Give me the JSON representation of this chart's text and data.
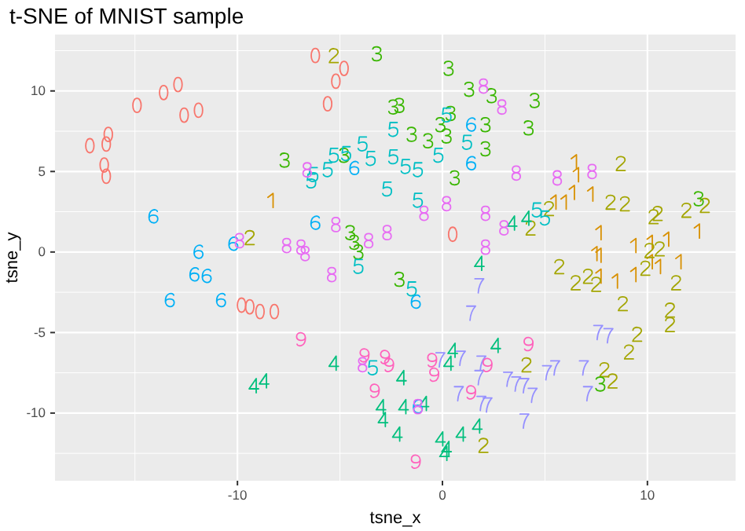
{
  "chart_data": {
    "type": "scatter",
    "title": "t-SNE of MNIST sample",
    "xlabel": "tsne_x",
    "ylabel": "tsne_y",
    "xlim": [
      -18.9,
      14.3
    ],
    "ylim": [
      -14.2,
      13.5
    ],
    "xticks": [
      -10,
      0,
      10
    ],
    "yticks": [
      -10,
      -5,
      0,
      5,
      10
    ],
    "grid": true,
    "series": [
      {
        "color": "#f8766d",
        "x": [
          -17.2,
          -16.4,
          -16.3,
          -16.5,
          -16.4,
          -14.9,
          -13.6,
          -12.9,
          -12.6,
          -11.9,
          -6.2,
          -4.8,
          -5.2,
          -5.6,
          0.5,
          -9.8,
          -9.4,
          -8.9,
          -8.2
        ],
        "values": [
          6.6,
          6.7,
          7.3,
          5.4,
          4.7,
          9.1,
          9.9,
          10.4,
          8.5,
          8.8,
          12.2,
          11.4,
          10.6,
          9.2,
          1.1,
          -3.3,
          -3.4,
          -3.7,
          -3.7
        ]
      },
      {
        "color": "#d89000",
        "x": [
          -8.3,
          6.5,
          6.6,
          6.4,
          7.3,
          5.5,
          6.0,
          7.7,
          7.5,
          7.7,
          9.4,
          10.2,
          11.0,
          12.5,
          11.6,
          10.6,
          10.2,
          8.5,
          9.4,
          7.7
        ],
        "values": [
          3.2,
          5.6,
          4.8,
          3.7,
          3.6,
          3.1,
          3.1,
          1.2,
          -0.1,
          -0.2,
          0.4,
          0.6,
          0.8,
          1.3,
          -0.6,
          -0.9,
          -0.6,
          -1.8,
          -1.4,
          -1.5
        ]
      },
      {
        "color": "#a3a500",
        "x": [
          -9.4,
          -5.3,
          8.7,
          5.2,
          4.3,
          8.2,
          8.9,
          10.3,
          10.5,
          11.9,
          12.8,
          10.1,
          10.6,
          9.9,
          5.7,
          6.5,
          7.1,
          7.5,
          11.4,
          8.8,
          11.1,
          11.1,
          9.5,
          9.1,
          4.1,
          7.9,
          8.3,
          2.0
        ],
        "values": [
          0.9,
          12.2,
          5.5,
          2.7,
          1.5,
          3.1,
          3.0,
          2.2,
          2.4,
          2.6,
          2.9,
          0.1,
          0.2,
          -1.0,
          -0.9,
          -1.9,
          -1.5,
          -2.0,
          -1.9,
          -3.2,
          -3.6,
          -4.5,
          -5.1,
          -6.2,
          -7.0,
          -7.3,
          -8.0,
          -12.0
        ]
      },
      {
        "color": "#39b600",
        "x": [
          -3.2,
          0.3,
          1.3,
          2.4,
          -2.4,
          -2.1,
          -1.5,
          -0.7,
          -0.1,
          0.4,
          0.2,
          2.1,
          2.1,
          -7.7,
          -4.8,
          0.6,
          -4.5,
          -4.3,
          -4.1,
          -2.1,
          4.5,
          4.2,
          12.5,
          7.7
        ],
        "values": [
          12.3,
          11.4,
          10.1,
          9.7,
          9.0,
          9.1,
          7.3,
          6.9,
          7.9,
          8.6,
          7.2,
          7.9,
          6.4,
          5.7,
          6.0,
          4.6,
          1.2,
          0.6,
          0.0,
          -1.7,
          9.4,
          7.7,
          3.3,
          -8.2
        ]
      },
      {
        "color": "#00bf7d",
        "x": [
          -9.2,
          -8.7,
          1.8,
          3.4,
          4.1,
          -5.3,
          0.5,
          0.3,
          2.6,
          -2.0,
          -3.0,
          -2.9,
          -1.9,
          -0.9,
          -2.2,
          -0.1,
          0.9,
          1.7,
          0.2,
          0.1
        ],
        "values": [
          -8.3,
          -8.0,
          -0.7,
          1.8,
          2.1,
          -6.9,
          -6.1,
          -6.9,
          -5.8,
          -7.8,
          -9.6,
          -10.4,
          -9.6,
          -9.4,
          -11.3,
          -11.6,
          -11.3,
          -10.8,
          -12.2,
          -12.5
        ]
      },
      {
        "color": "#00bfc4",
        "x": [
          0.2,
          -2.4,
          -3.9,
          -5.3,
          -4.7,
          -3.5,
          -2.4,
          -1.8,
          -1.2,
          -0.2,
          1.2,
          -5.6,
          -6.3,
          -6.4,
          -2.7,
          -1.2,
          -4.1,
          -1.5,
          -3.4,
          4.6,
          5.0
        ],
        "values": [
          8.5,
          7.6,
          6.7,
          6.0,
          6.1,
          5.8,
          5.9,
          5.3,
          5.1,
          6.0,
          6.8,
          5.1,
          4.8,
          4.4,
          3.9,
          3.2,
          -0.9,
          -2.3,
          -7.2,
          2.6,
          2.1
        ]
      },
      {
        "color": "#00b0f6",
        "x": [
          -14.1,
          -11.9,
          -12.1,
          -11.5,
          -10.2,
          -13.3,
          1.4,
          1.4,
          -6.2,
          -4.3,
          -1.3,
          -10.8,
          -1.2
        ],
        "values": [
          2.2,
          0.0,
          -1.4,
          -1.5,
          0.5,
          -3.0,
          7.9,
          5.5,
          1.8,
          5.2,
          -3.1,
          -3.0,
          -9.6
        ]
      },
      {
        "color": "#9590ff",
        "x": [
          1.8,
          1.4,
          -0.1,
          0.9,
          1.9,
          1.8,
          0.8,
          1.9,
          2.2,
          3.2,
          3.6,
          4.0,
          4.4,
          5.1,
          5.5,
          6.9,
          7.1,
          4.0,
          7.6,
          8.1
        ],
        "values": [
          -2.1,
          -3.8,
          -6.7,
          -6.6,
          -6.9,
          -7.8,
          -8.8,
          -9.4,
          -9.5,
          -7.9,
          -8.2,
          -8.3,
          -8.9,
          -7.5,
          -7.2,
          -7.2,
          -8.8,
          -10.5,
          -5.0,
          -5.2
        ]
      },
      {
        "color": "#e76bf3",
        "x": [
          -9.9,
          2.0,
          2.9,
          -6.6,
          -0.9,
          0.2,
          2.1,
          3.0,
          -5.2,
          -2.7,
          -3.6,
          -7.6,
          -6.9,
          -6.7,
          -5.4,
          2.1,
          3.6,
          5.6,
          7.3,
          -3.9,
          -1.2
        ],
        "values": [
          0.7,
          10.3,
          9.0,
          5.1,
          2.4,
          3.0,
          2.4,
          1.5,
          1.7,
          1.2,
          0.7,
          0.4,
          0.3,
          -0.1,
          -1.4,
          0.3,
          4.9,
          4.6,
          5.0,
          -7.0,
          -9.6
        ]
      },
      {
        "color": "#ff62bc",
        "x": [
          -6.9,
          -3.8,
          -2.8,
          -2.6,
          -3.3,
          -0.5,
          -0.4,
          2.2,
          1.4,
          -1.3,
          4.2
        ],
        "values": [
          -5.4,
          -6.4,
          -6.5,
          -7.0,
          -8.6,
          -6.7,
          -7.6,
          -7.0,
          -8.7,
          -13.0,
          -5.7
        ]
      }
    ]
  }
}
